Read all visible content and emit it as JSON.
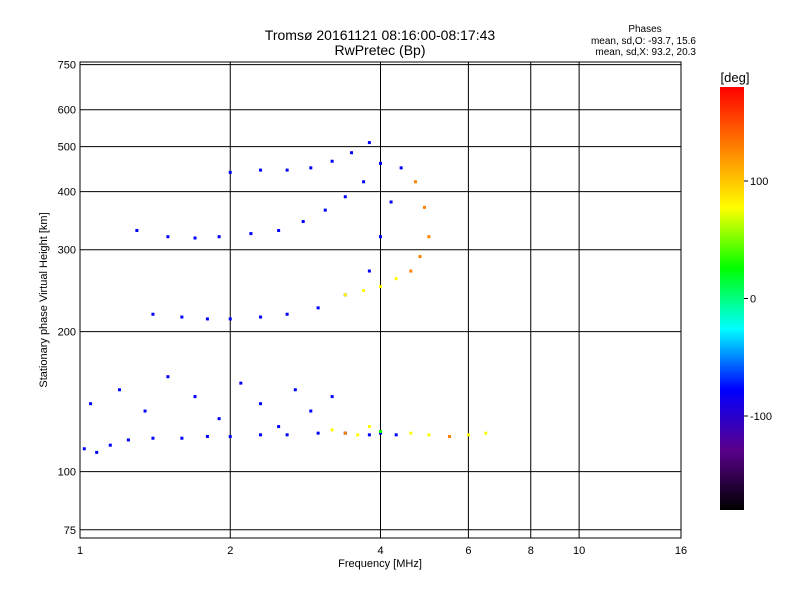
{
  "chart_data": {
    "type": "scatter",
    "title": "Tromsø 20161121 08:16:00-08:17:43",
    "subtitle": "RwPretec (Bp)",
    "xlabel": "Frequency [MHz]",
    "ylabel": "Stationary phase Virtual Height [km]",
    "x_scale": "log",
    "y_scale": "log",
    "xlim": [
      1,
      16
    ],
    "ylim": [
      72,
      760
    ],
    "x_ticks": [
      1,
      2,
      4,
      6,
      8,
      10,
      16
    ],
    "y_ticks": [
      75,
      100,
      200,
      300,
      400,
      500,
      600,
      750
    ],
    "grid": true,
    "stats": {
      "header": "Phases",
      "line_o": "mean, sd,O: -93.7, 15.6",
      "line_x": "mean, sd,X: 93.2, 20.3"
    },
    "colorbar": {
      "label": "[deg]",
      "range": [
        -180,
        180
      ],
      "ticks": [
        100,
        0,
        -100
      ],
      "colors": [
        "#000000",
        "#5a008c",
        "#0000ff",
        "#00ffff",
        "#00ff00",
        "#ffff00",
        "#ff8000",
        "#ff0000"
      ]
    },
    "series": [
      {
        "x": [
          1.02,
          1.08,
          1.15,
          1.25,
          1.4,
          1.6,
          1.8,
          2.0,
          2.3,
          2.6,
          3.0,
          3.4,
          3.8,
          4.0
        ],
        "y": [
          112,
          110,
          114,
          117,
          118,
          118,
          119,
          119,
          120,
          120,
          121,
          121,
          120,
          121
        ],
        "phase": [
          -100,
          -100,
          -100,
          -100,
          -100,
          -100,
          -100,
          -100,
          -100,
          -100,
          -100,
          -100,
          -95,
          -95
        ]
      },
      {
        "x": [
          1.05,
          1.2,
          1.35,
          1.5,
          1.7,
          1.9,
          2.1,
          2.3,
          2.5,
          2.7,
          2.9,
          3.2
        ],
        "y": [
          140,
          150,
          135,
          160,
          145,
          130,
          155,
          140,
          125,
          150,
          135,
          145
        ],
        "phase": [
          -100,
          -100,
          -100,
          -100,
          -100,
          -100,
          -100,
          -100,
          -100,
          -100,
          -100,
          -100
        ]
      },
      {
        "x": [
          3.2,
          3.4,
          3.6,
          3.8,
          4.0,
          4.3,
          4.6,
          5.0,
          5.5,
          6.0,
          6.5
        ],
        "y": [
          123,
          121,
          120,
          125,
          122,
          120,
          121,
          120,
          119,
          120,
          121
        ],
        "phase": [
          100,
          110,
          95,
          90,
          30,
          -100,
          100,
          90,
          110,
          100,
          90
        ]
      },
      {
        "x": [
          1.4,
          1.6,
          1.8,
          2.0,
          2.3,
          2.6,
          3.0,
          3.4,
          3.8,
          4.0,
          4.2,
          4.4
        ],
        "y": [
          218,
          215,
          213,
          213,
          215,
          218,
          225,
          240,
          270,
          320,
          380,
          450
        ],
        "phase": [
          -100,
          -100,
          -100,
          -100,
          -100,
          -100,
          -100,
          -100,
          -100,
          -100,
          -100,
          -100
        ]
      },
      {
        "x": [
          3.4,
          3.7,
          4.0,
          4.3,
          4.6,
          4.8,
          5.0,
          4.9,
          4.7
        ],
        "y": [
          240,
          245,
          250,
          260,
          270,
          290,
          320,
          370,
          420
        ],
        "phase": [
          100,
          100,
          100,
          100,
          110,
          110,
          120,
          130,
          130
        ]
      },
      {
        "x": [
          1.3,
          1.5,
          1.7,
          1.9,
          2.2,
          2.5,
          2.8,
          3.1,
          3.4,
          3.7,
          4.0
        ],
        "y": [
          330,
          320,
          318,
          320,
          325,
          330,
          345,
          365,
          390,
          420,
          460
        ],
        "phase": [
          -100,
          -100,
          -100,
          -100,
          -100,
          -100,
          -100,
          -100,
          -100,
          -100,
          -100
        ]
      },
      {
        "x": [
          2.0,
          2.3,
          2.6,
          2.9,
          3.2,
          3.5,
          3.8
        ],
        "y": [
          440,
          445,
          445,
          450,
          465,
          485,
          510
        ],
        "phase": [
          -100,
          -100,
          -100,
          -100,
          -100,
          -100,
          -100
        ]
      }
    ]
  }
}
